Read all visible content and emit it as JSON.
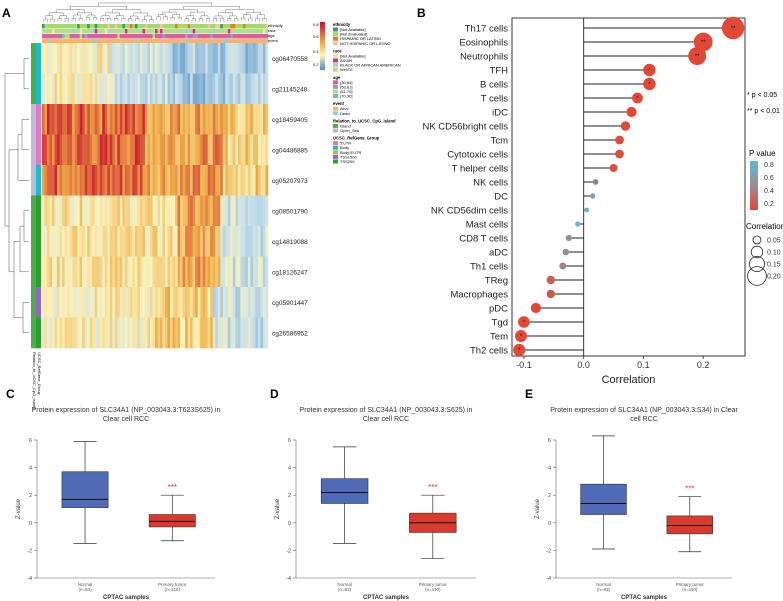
{
  "panels": {
    "A": "A",
    "B": "B",
    "C": "C",
    "D": "D",
    "E": "E"
  },
  "heatmap": {
    "row_labels": [
      "cg06470558",
      "cg21145248",
      "cg18459405",
      "cg04486885",
      "cg05207973",
      "cg08501790",
      "cg14819088",
      "cg18126247",
      "cg05901447",
      "cg26586952"
    ],
    "top_bar_labels": [
      "ethnicity",
      "race",
      "age",
      "event"
    ],
    "left_bar_labels": [
      "Relation_to_UCSC_CpG_Island",
      "UCSC_RefGene_Group"
    ],
    "colorscale": {
      "ticks": [
        "0.8",
        "0.6",
        "0.4",
        "0.2"
      ],
      "colors": [
        "#c8102e",
        "#f0b04a",
        "#fdf2b8",
        "#4a8cc4"
      ]
    },
    "legend": [
      {
        "title": "ethnicity",
        "items": [
          {
            "label": "[Not Available]",
            "color": "#2ca25f"
          },
          {
            "label": "[Not Evaluated]",
            "color": "#a6d96a"
          },
          {
            "label": "HISPANIC OR LATINO",
            "color": "#e08214"
          },
          {
            "label": "NOT HISPANIC OR LATINO",
            "color": "#f6c6a0"
          }
        ]
      },
      {
        "title": "race",
        "items": [
          {
            "label": "[Not Available]",
            "color": "#fde0a8"
          },
          {
            "label": "ASIAN",
            "color": "#e7298a"
          },
          {
            "label": "BLACK OR AFRICAN AMERICAN",
            "color": "#a6cee3"
          },
          {
            "label": "WHITE",
            "color": "#b2df8a"
          }
        ]
      },
      {
        "title": "age",
        "items": [
          {
            "label": "(30,53]",
            "color": "#d95f9f"
          },
          {
            "label": "(53,61]",
            "color": "#9e9ac8"
          },
          {
            "label": "(61,70]",
            "color": "#b3de69"
          },
          {
            "label": "(70,90]",
            "color": "#80b1d3"
          }
        ]
      },
      {
        "title": "event",
        "items": [
          {
            "label": "Alive",
            "color": "#fdb462"
          },
          {
            "label": "Dead",
            "color": "#8dd3c7"
          }
        ]
      },
      {
        "title": "Relation_to_UCSC_CpG_Island",
        "items": [
          {
            "label": "Island",
            "color": "#4daf4a"
          },
          {
            "label": "Open_Sea",
            "color": "#bebada"
          }
        ]
      },
      {
        "title": "UCSC_RefGene_Group",
        "items": [
          {
            "label": "5'UTR",
            "color": "#e377c2"
          },
          {
            "label": "Body",
            "color": "#17becf"
          },
          {
            "label": "Body;5'UTR",
            "color": "#bcbd22"
          },
          {
            "label": "TSS1500",
            "color": "#9467bd"
          },
          {
            "label": "TSS200",
            "color": "#2ca02c"
          }
        ]
      }
    ]
  },
  "chart_data": [
    {
      "type": "scatter",
      "subtype": "lollipop",
      "panel": "B",
      "xlabel": "Correlation",
      "xlim": [
        -0.12,
        0.27
      ],
      "xticks": [
        "-0.1",
        "0.0",
        "0.1",
        "0.2"
      ],
      "xtick_values": [
        -0.1,
        0.0,
        0.1,
        0.2
      ],
      "categories": [
        "Th17 cells",
        "Eosinophils",
        "Neutrophils",
        "TFH",
        "B cells",
        "T cells",
        "iDC",
        "NK CD56bright cells",
        "Tcm",
        "Cytotoxic cells",
        "T helper cells",
        "NK cells",
        "DC",
        "NK CD56dim cells",
        "Mast cells",
        "CD8 T cells",
        "aDC",
        "Th1 cells",
        "TReg",
        "Macrophages",
        "pDC",
        "Tgd",
        "Tem",
        "Th2 cells"
      ],
      "values": [
        0.25,
        0.2,
        0.19,
        0.11,
        0.11,
        0.09,
        0.08,
        0.07,
        0.06,
        0.06,
        0.05,
        0.02,
        0.015,
        0.005,
        -0.01,
        -0.025,
        -0.03,
        -0.035,
        -0.055,
        -0.055,
        -0.08,
        -0.1,
        -0.105,
        -0.108
      ],
      "pvalues": [
        0.0005,
        0.001,
        0.002,
        0.04,
        0.045,
        0.048,
        0.08,
        0.1,
        0.12,
        0.13,
        0.16,
        0.45,
        0.7,
        0.85,
        0.9,
        0.6,
        0.55,
        0.5,
        0.25,
        0.22,
        0.08,
        0.01,
        0.008,
        0.006
      ],
      "significance": [
        "**",
        "**",
        "**",
        "*",
        "*",
        "*",
        "",
        "",
        "",
        "",
        "",
        "",
        "",
        "",
        "",
        "",
        "",
        "",
        "",
        "",
        "",
        "*",
        "*",
        "*"
      ],
      "sig_legend": [
        "* p < 0.05",
        "** p < 0.01"
      ],
      "pvalue_legend": {
        "title": "P value",
        "ticks": [
          "0.8",
          "0.6",
          "0.4",
          "0.2"
        ],
        "tick_values": [
          0.8,
          0.6,
          0.4,
          0.2
        ]
      },
      "size_legend": {
        "title": "Correlation",
        "labels": [
          "0.05",
          "0.10",
          "0.15",
          "0.20"
        ],
        "values": [
          0.05,
          0.1,
          0.15,
          0.2
        ]
      }
    },
    {
      "type": "box",
      "panel": "C",
      "title": "Protein expression of SLC34A1 (NP_003043.3:T623S625) in Clear cell RCC",
      "xlabel": "CPTAC samples",
      "ylabel": "Z-value",
      "ylim": [
        -4,
        6
      ],
      "yticks": [
        "-4",
        "-2",
        "0",
        "2",
        "4",
        "6"
      ],
      "ytick_values": [
        -4,
        -2,
        0,
        2,
        4,
        6
      ],
      "significance": "***",
      "groups": [
        {
          "name": "Normal",
          "n": "(n=83)",
          "whisker_low": -1.5,
          "q1": 1.1,
          "median": 1.7,
          "q3": 3.7,
          "whisker_high": 5.9,
          "color": "#4f6bb8"
        },
        {
          "name": "Primary tumor",
          "n": "(n=110)",
          "whisker_low": -1.3,
          "q1": -0.3,
          "median": 0.1,
          "q3": 0.6,
          "whisker_high": 2.0,
          "color": "#d93a2b"
        }
      ]
    },
    {
      "type": "box",
      "panel": "D",
      "title": "Protein expression of SLC34A1 (NP_003043.3:S625) in Clear cell RCC",
      "xlabel": "CPTAC samples",
      "ylabel": "Z-value",
      "ylim": [
        -4,
        6
      ],
      "yticks": [
        "-4",
        "-2",
        "0",
        "2",
        "4",
        "6"
      ],
      "ytick_values": [
        -4,
        -2,
        0,
        2,
        4,
        6
      ],
      "significance": "***",
      "groups": [
        {
          "name": "Normal",
          "n": "(n=83)",
          "whisker_low": -1.5,
          "q1": 1.4,
          "median": 2.2,
          "q3": 3.2,
          "whisker_high": 5.5,
          "color": "#4f6bb8"
        },
        {
          "name": "Primary tumor",
          "n": "(n=110)",
          "whisker_low": -2.6,
          "q1": -0.7,
          "median": 0.0,
          "q3": 0.7,
          "whisker_high": 2.0,
          "color": "#d93a2b"
        }
      ]
    },
    {
      "type": "box",
      "panel": "E",
      "title": "Protein expression of SLC34A1 (NP_003043.3:S34) in Clear cell RCC",
      "xlabel": "CPTAC samples",
      "ylabel": "Z-value",
      "ylim": [
        -4,
        6
      ],
      "yticks": [
        "-4",
        "-2",
        "0",
        "2",
        "4",
        "6"
      ],
      "ytick_values": [
        -4,
        -2,
        0,
        2,
        4,
        6
      ],
      "significance": "***",
      "groups": [
        {
          "name": "Normal",
          "n": "(n=83)",
          "whisker_low": -1.9,
          "q1": 0.6,
          "median": 1.4,
          "q3": 2.8,
          "whisker_high": 6.3,
          "color": "#4f6bb8"
        },
        {
          "name": "Primary tumor",
          "n": "(n=110)",
          "whisker_low": -2.1,
          "q1": -0.8,
          "median": -0.2,
          "q3": 0.5,
          "whisker_high": 1.9,
          "color": "#d93a2b"
        }
      ]
    }
  ]
}
